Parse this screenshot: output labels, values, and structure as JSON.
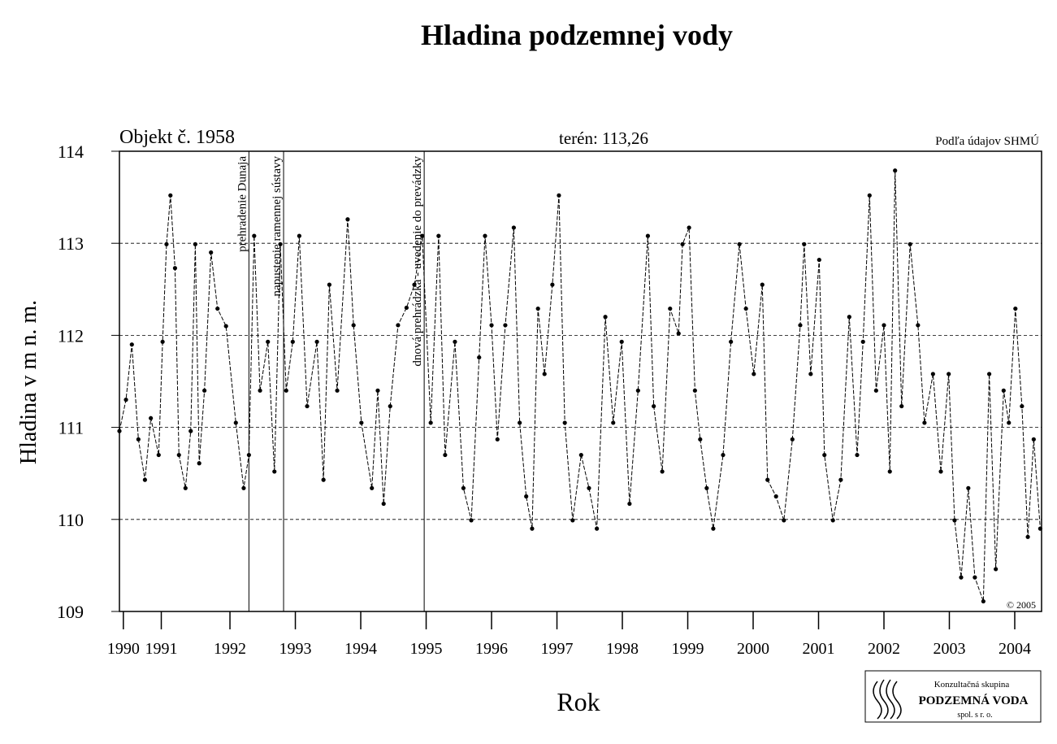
{
  "chart_data": {
    "type": "line",
    "title": "Hladina podzemnej vody",
    "object_label": "Objekt č. 1958",
    "terrain_label": "terén: 113,26",
    "source": "Podľa údajov SHMÚ",
    "copyright": "© 2005",
    "x_label": "Rok",
    "y_label": "Hladina v m n. m.",
    "xlim": [
      1990.81,
      2004.91
    ],
    "ylim": [
      109,
      114
    ],
    "yticks": [
      109,
      110,
      111,
      112,
      113,
      114
    ],
    "xticks": [
      {
        "value": 1990.87,
        "label": "1990"
      },
      {
        "value": 1991.45,
        "label": "1991"
      },
      {
        "value": 1992.5,
        "label": "1992"
      },
      {
        "value": 1993.5,
        "label": "1993"
      },
      {
        "value": 1994.5,
        "label": "1994"
      },
      {
        "value": 1995.5,
        "label": "1995"
      },
      {
        "value": 1996.5,
        "label": "1996"
      },
      {
        "value": 1997.5,
        "label": "1997"
      },
      {
        "value": 1998.5,
        "label": "1998"
      },
      {
        "value": 1999.5,
        "label": "1999"
      },
      {
        "value": 2000.5,
        "label": "2000"
      },
      {
        "value": 2001.5,
        "label": "2001"
      },
      {
        "value": 2002.5,
        "label": "2002"
      },
      {
        "value": 2003.5,
        "label": "2003"
      },
      {
        "value": 2004.5,
        "label": "2004"
      }
    ],
    "grid": true,
    "color": "#000000",
    "events": [
      {
        "x": 1992.79,
        "label": "prehradenie Dunaja"
      },
      {
        "x": 1993.32,
        "label": "napustenie ramennej sústavy"
      },
      {
        "x": 1995.47,
        "label": "dnová prehrádzka - uvedenie do prevádzky"
      }
    ],
    "x": [
      1990.81,
      1990.91,
      1991.0,
      1991.1,
      1991.2,
      1991.29,
      1991.41,
      1991.47,
      1991.53,
      1991.59,
      1991.66,
      1991.72,
      1991.82,
      1991.9,
      1991.97,
      1992.03,
      1992.11,
      1992.21,
      1992.31,
      1992.44,
      1992.59,
      1992.71,
      1992.79,
      1992.87,
      1992.96,
      1993.08,
      1993.18,
      1993.27,
      1993.36,
      1993.46,
      1993.56,
      1993.68,
      1993.83,
      1993.93,
      1994.02,
      1994.14,
      1994.3,
      1994.39,
      1994.51,
      1994.67,
      1994.76,
      1994.85,
      1994.95,
      1995.07,
      1995.2,
      1995.32,
      1995.44,
      1995.57,
      1995.69,
      1995.79,
      1995.94,
      1996.07,
      1996.19,
      1996.31,
      1996.4,
      1996.5,
      1996.59,
      1996.71,
      1996.84,
      1996.93,
      1997.03,
      1997.12,
      1997.21,
      1997.31,
      1997.43,
      1997.53,
      1997.62,
      1997.74,
      1997.87,
      1997.99,
      1998.11,
      1998.24,
      1998.36,
      1998.49,
      1998.61,
      1998.74,
      1998.89,
      1998.98,
      1999.11,
      1999.23,
      1999.36,
      1999.42,
      1999.52,
      1999.61,
      1999.69,
      1999.79,
      1999.89,
      2000.04,
      2000.16,
      2000.29,
      2000.39,
      2000.51,
      2000.64,
      2000.72,
      2000.85,
      2000.97,
      2001.1,
      2001.22,
      2001.28,
      2001.38,
      2001.51,
      2001.59,
      2001.72,
      2001.84,
      2001.97,
      2002.09,
      2002.18,
      2002.28,
      2002.38,
      2002.5,
      2002.59,
      2002.67,
      2002.77,
      2002.9,
      2003.02,
      2003.12,
      2003.25,
      2003.37,
      2003.49,
      2003.58,
      2003.68,
      2003.79,
      2003.89,
      2004.02,
      2004.11,
      2004.21,
      2004.33,
      2004.41,
      2004.51,
      2004.61,
      2004.7,
      2004.79,
      2004.89
    ],
    "values": [
      110.96,
      111.3,
      111.9,
      110.87,
      110.43,
      111.1,
      110.7,
      111.93,
      112.99,
      113.52,
      112.73,
      110.7,
      110.34,
      110.96,
      112.99,
      110.61,
      111.4,
      112.9,
      112.29,
      112.1,
      111.05,
      110.34,
      110.7,
      113.08,
      111.4,
      111.93,
      110.52,
      112.99,
      111.4,
      111.93,
      113.08,
      111.23,
      111.93,
      110.43,
      112.55,
      111.4,
      113.26,
      112.11,
      111.05,
      110.34,
      111.4,
      110.17,
      111.23,
      112.11,
      112.3,
      112.55,
      113.08,
      111.05,
      113.08,
      110.7,
      111.93,
      110.34,
      109.99,
      111.76,
      113.08,
      112.11,
      110.87,
      112.11,
      113.17,
      111.05,
      110.25,
      109.9,
      112.29,
      111.58,
      112.55,
      113.52,
      111.05,
      109.99,
      110.7,
      110.34,
      109.9,
      112.2,
      111.05,
      111.93,
      110.17,
      111.4,
      113.08,
      111.23,
      110.52,
      112.29,
      112.02,
      112.99,
      113.17,
      111.4,
      110.87,
      110.34,
      109.9,
      110.7,
      111.93,
      112.99,
      112.29,
      111.58,
      112.55,
      110.43,
      110.25,
      109.99,
      110.87,
      112.11,
      112.99,
      111.58,
      112.82,
      110.7,
      109.99,
      110.43,
      112.2,
      110.7,
      111.93,
      113.52,
      111.4,
      112.11,
      110.52,
      113.79,
      111.23,
      112.99,
      112.11,
      111.05,
      111.58,
      110.52,
      111.58,
      109.99,
      109.37,
      110.34,
      109.37,
      109.11,
      111.58,
      109.46,
      111.4,
      111.05,
      112.29,
      111.23,
      109.81,
      110.87,
      109.9
    ]
  },
  "logo": {
    "line1": "Konzultačná skupina",
    "line2": "PODZEMNÁ VODA",
    "line3": "spol. s r. o."
  }
}
